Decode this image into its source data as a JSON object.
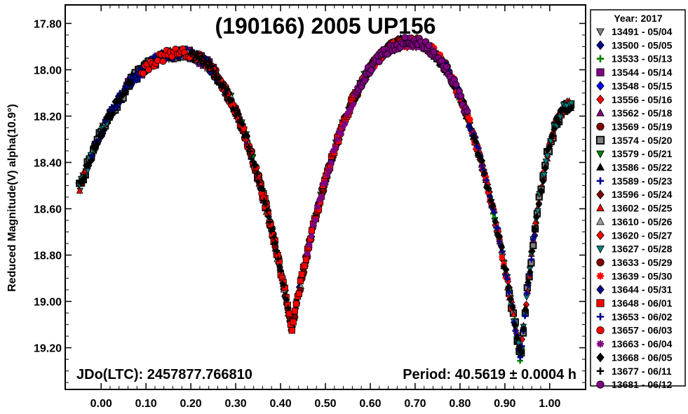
{
  "chart_data": {
    "type": "scatter",
    "title": "(190166) 2005 UP156",
    "xlabel": "",
    "ylabel": "Reduced Magnitude(V) alpha(10.9°)",
    "xlim": [
      -0.08,
      1.08
    ],
    "ylim": [
      19.38,
      17.72
    ],
    "y_inverted": true,
    "x_ticks": [
      "0.00",
      "0.10",
      "0.20",
      "0.30",
      "0.40",
      "0.50",
      "0.60",
      "0.70",
      "0.80",
      "0.90",
      "1.00"
    ],
    "y_ticks": [
      "17.80",
      "18.00",
      "18.20",
      "18.40",
      "18.60",
      "18.80",
      "19.00",
      "19.20"
    ],
    "grid": false,
    "legend_placement": "right",
    "legend_title": "Year: 2017",
    "annotations": {
      "epoch": "JDo(LTC): 2457877.766810",
      "period": "Period: 40.5619 ± 0.0004 h"
    },
    "lightcurve_model": {
      "period_hours": 40.5619,
      "maxima": [
        {
          "phase": 0.18,
          "mag": 17.93
        },
        {
          "phase": 0.69,
          "mag": 17.88
        }
      ],
      "minima": [
        {
          "phase": 0.425,
          "mag": 19.12
        },
        {
          "phase": 0.935,
          "mag": 19.25
        }
      ],
      "phase_start": -0.05,
      "phase_end": 1.05,
      "mag_at_start": 18.52,
      "mag_at_end": 18.15
    },
    "series": [
      {
        "name": "13491 - 05/04",
        "color": "#808080",
        "marker": "triangle-down"
      },
      {
        "name": "13500 - 05/05",
        "color": "#00008b",
        "marker": "diamond"
      },
      {
        "name": "13533 - 05/13",
        "color": "#008000",
        "marker": "plus"
      },
      {
        "name": "13544 - 05/14",
        "color": "#800080",
        "marker": "square"
      },
      {
        "name": "13548 - 05/15",
        "color": "#0000ff",
        "marker": "diamond"
      },
      {
        "name": "13556 - 05/16",
        "color": "#ff0000",
        "marker": "diamond"
      },
      {
        "name": "13562 - 05/18",
        "color": "#800080",
        "marker": "triangle"
      },
      {
        "name": "13569 - 05/19",
        "color": "#800000",
        "marker": "circle"
      },
      {
        "name": "13574 - 05/20",
        "color": "#808080",
        "marker": "square-outline"
      },
      {
        "name": "13579 - 05/21",
        "color": "#008000",
        "marker": "triangle-down"
      },
      {
        "name": "13586 - 05/22",
        "color": "#000000",
        "marker": "triangle"
      },
      {
        "name": "13589 - 05/23",
        "color": "#00008b",
        "marker": "plus"
      },
      {
        "name": "13596 - 05/24",
        "color": "#800000",
        "marker": "diamond"
      },
      {
        "name": "13602 - 05/25",
        "color": "#ff0000",
        "marker": "triangle"
      },
      {
        "name": "13610 - 05/26",
        "color": "#a0a0a0",
        "marker": "triangle"
      },
      {
        "name": "13620 - 05/27",
        "color": "#ff0000",
        "marker": "diamond"
      },
      {
        "name": "13627 - 05/28",
        "color": "#008080",
        "marker": "triangle-down"
      },
      {
        "name": "13633 - 05/29",
        "color": "#800000",
        "marker": "circle"
      },
      {
        "name": "13639 - 05/30",
        "color": "#ff0000",
        "marker": "asterisk"
      },
      {
        "name": "13644 - 05/31",
        "color": "#00008b",
        "marker": "diamond"
      },
      {
        "name": "13648 - 06/01",
        "color": "#ff0000",
        "marker": "square"
      },
      {
        "name": "13653 - 06/02",
        "color": "#00008b",
        "marker": "plus"
      },
      {
        "name": "13657 - 06/03",
        "color": "#ff0000",
        "marker": "circle"
      },
      {
        "name": "13663 - 06/04",
        "color": "#800080",
        "marker": "asterisk"
      },
      {
        "name": "13668 - 06/05",
        "color": "#000000",
        "marker": "diamond"
      },
      {
        "name": "13677 - 06/11",
        "color": "#000000",
        "marker": "plus"
      },
      {
        "name": "13681 - 06/12",
        "color": "#800080",
        "marker": "circle"
      }
    ]
  }
}
